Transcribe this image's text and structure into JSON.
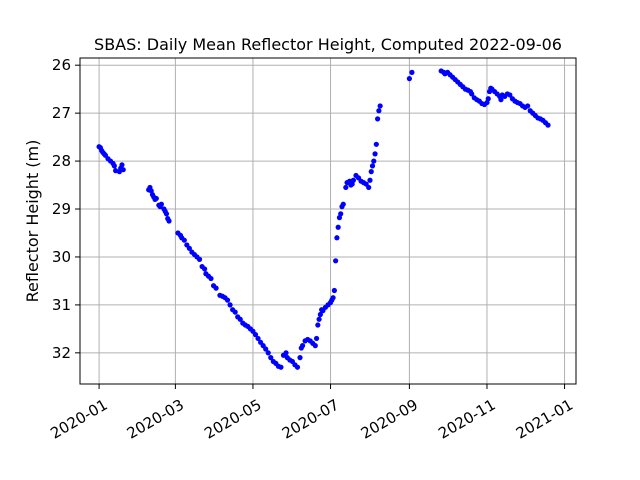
{
  "chart_data": {
    "type": "scatter",
    "title": "SBAS: Daily Mean Reflector Height, Computed 2022-09-06",
    "xlabel": "",
    "ylabel": "Reflector Height (m)",
    "xlim": [
      "2019-12-17",
      "2021-01-10"
    ],
    "ylim": [
      32.65,
      25.85
    ],
    "y_inverted": true,
    "grid": true,
    "marker_color": "#0000ff",
    "x_ticks": [
      "2020-01-01",
      "2020-03-01",
      "2020-05-01",
      "2020-07-01",
      "2020-09-01",
      "2020-11-01",
      "2021-01-01"
    ],
    "x_tick_labels": [
      "2020-01",
      "2020-03",
      "2020-05",
      "2020-07",
      "2020-09",
      "2020-11",
      "2021-01"
    ],
    "y_ticks": [
      26,
      27,
      28,
      29,
      30,
      31,
      32
    ],
    "y_tick_labels": [
      "26",
      "27",
      "28",
      "29",
      "30",
      "31",
      "32"
    ],
    "series": [
      {
        "points": [
          [
            "2020-01-01",
            27.7
          ],
          [
            "2020-01-02",
            27.72
          ],
          [
            "2020-01-03",
            27.78
          ],
          [
            "2020-01-04",
            27.82
          ],
          [
            "2020-01-05",
            27.85
          ],
          [
            "2020-01-06",
            27.88
          ],
          [
            "2020-01-08",
            27.95
          ],
          [
            "2020-01-10",
            28.0
          ],
          [
            "2020-01-12",
            28.05
          ],
          [
            "2020-01-13",
            28.1
          ],
          [
            "2020-01-14",
            28.2
          ],
          [
            "2020-01-17",
            28.22
          ],
          [
            "2020-01-18",
            28.15
          ],
          [
            "2020-01-19",
            28.08
          ],
          [
            "2020-01-20",
            28.18
          ],
          [
            "2020-02-09",
            28.6
          ],
          [
            "2020-02-10",
            28.55
          ],
          [
            "2020-02-11",
            28.62
          ],
          [
            "2020-02-12",
            28.7
          ],
          [
            "2020-02-13",
            28.75
          ],
          [
            "2020-02-14",
            28.8
          ],
          [
            "2020-02-15",
            28.78
          ],
          [
            "2020-02-17",
            28.92
          ],
          [
            "2020-02-18",
            28.95
          ],
          [
            "2020-02-19",
            28.9
          ],
          [
            "2020-02-21",
            29.0
          ],
          [
            "2020-02-22",
            29.05
          ],
          [
            "2020-02-23",
            29.1
          ],
          [
            "2020-02-24",
            29.2
          ],
          [
            "2020-02-25",
            29.25
          ],
          [
            "2020-03-03",
            29.5
          ],
          [
            "2020-03-05",
            29.55
          ],
          [
            "2020-03-06",
            29.6
          ],
          [
            "2020-03-08",
            29.65
          ],
          [
            "2020-03-10",
            29.75
          ],
          [
            "2020-03-12",
            29.82
          ],
          [
            "2020-03-14",
            29.9
          ],
          [
            "2020-03-16",
            29.95
          ],
          [
            "2020-03-18",
            30.0
          ],
          [
            "2020-03-20",
            30.05
          ],
          [
            "2020-03-22",
            30.2
          ],
          [
            "2020-03-24",
            30.25
          ],
          [
            "2020-03-25",
            30.35
          ],
          [
            "2020-03-27",
            30.4
          ],
          [
            "2020-03-29",
            30.45
          ],
          [
            "2020-03-31",
            30.6
          ],
          [
            "2020-04-02",
            30.65
          ],
          [
            "2020-04-05",
            30.8
          ],
          [
            "2020-04-07",
            30.82
          ],
          [
            "2020-04-09",
            30.85
          ],
          [
            "2020-04-11",
            30.9
          ],
          [
            "2020-04-13",
            31.0
          ],
          [
            "2020-04-15",
            31.1
          ],
          [
            "2020-04-17",
            31.15
          ],
          [
            "2020-04-19",
            31.25
          ],
          [
            "2020-04-21",
            31.3
          ],
          [
            "2020-04-23",
            31.38
          ],
          [
            "2020-04-25",
            31.42
          ],
          [
            "2020-04-27",
            31.45
          ],
          [
            "2020-04-29",
            31.5
          ],
          [
            "2020-05-01",
            31.55
          ],
          [
            "2020-05-03",
            31.62
          ],
          [
            "2020-05-05",
            31.7
          ],
          [
            "2020-05-07",
            31.78
          ],
          [
            "2020-05-09",
            31.85
          ],
          [
            "2020-05-11",
            31.92
          ],
          [
            "2020-05-13",
            32.0
          ],
          [
            "2020-05-15",
            32.1
          ],
          [
            "2020-05-17",
            32.18
          ],
          [
            "2020-05-19",
            32.22
          ],
          [
            "2020-05-21",
            32.28
          ],
          [
            "2020-05-23",
            32.3
          ],
          [
            "2020-05-25",
            32.05
          ],
          [
            "2020-05-27",
            32.0
          ],
          [
            "2020-05-28",
            32.1
          ],
          [
            "2020-05-30",
            32.15
          ],
          [
            "2020-06-01",
            32.18
          ],
          [
            "2020-06-03",
            32.25
          ],
          [
            "2020-06-05",
            32.3
          ],
          [
            "2020-06-07",
            32.1
          ],
          [
            "2020-06-08",
            31.9
          ],
          [
            "2020-06-09",
            31.85
          ],
          [
            "2020-06-11",
            31.75
          ],
          [
            "2020-06-13",
            31.72
          ],
          [
            "2020-06-15",
            31.75
          ],
          [
            "2020-06-17",
            31.8
          ],
          [
            "2020-06-19",
            31.85
          ],
          [
            "2020-06-20",
            31.7
          ],
          [
            "2020-06-21",
            31.42
          ],
          [
            "2020-06-22",
            31.3
          ],
          [
            "2020-06-23",
            31.2
          ],
          [
            "2020-06-24",
            31.1
          ],
          [
            "2020-06-25",
            31.12
          ],
          [
            "2020-06-27",
            31.05
          ],
          [
            "2020-06-29",
            31.0
          ],
          [
            "2020-07-01",
            30.95
          ],
          [
            "2020-07-02",
            30.9
          ],
          [
            "2020-07-03",
            30.85
          ],
          [
            "2020-07-04",
            30.7
          ],
          [
            "2020-07-05",
            30.08
          ],
          [
            "2020-07-06",
            29.6
          ],
          [
            "2020-07-07",
            29.38
          ],
          [
            "2020-07-08",
            29.18
          ],
          [
            "2020-07-09",
            29.1
          ],
          [
            "2020-07-10",
            28.95
          ],
          [
            "2020-07-11",
            28.9
          ],
          [
            "2020-07-13",
            28.55
          ],
          [
            "2020-07-14",
            28.45
          ],
          [
            "2020-07-16",
            28.42
          ],
          [
            "2020-07-17",
            28.5
          ],
          [
            "2020-07-18",
            28.48
          ],
          [
            "2020-07-19",
            28.4
          ],
          [
            "2020-07-21",
            28.3
          ],
          [
            "2020-07-23",
            28.35
          ],
          [
            "2020-07-25",
            28.42
          ],
          [
            "2020-07-27",
            28.45
          ],
          [
            "2020-07-29",
            28.48
          ],
          [
            "2020-07-31",
            28.55
          ],
          [
            "2020-08-01",
            28.4
          ],
          [
            "2020-08-02",
            28.22
          ],
          [
            "2020-08-03",
            28.1
          ],
          [
            "2020-08-04",
            28.0
          ],
          [
            "2020-08-05",
            27.85
          ],
          [
            "2020-08-06",
            27.65
          ],
          [
            "2020-08-07",
            27.12
          ],
          [
            "2020-08-08",
            26.95
          ],
          [
            "2020-08-09",
            26.85
          ],
          [
            "2020-09-01",
            26.28
          ],
          [
            "2020-09-03",
            26.15
          ],
          [
            "2020-09-26",
            26.12
          ],
          [
            "2020-09-28",
            26.15
          ],
          [
            "2020-09-29",
            26.18
          ],
          [
            "2020-10-01",
            26.15
          ],
          [
            "2020-10-03",
            26.2
          ],
          [
            "2020-10-05",
            26.25
          ],
          [
            "2020-10-07",
            26.3
          ],
          [
            "2020-10-09",
            26.35
          ],
          [
            "2020-10-11",
            26.4
          ],
          [
            "2020-10-13",
            26.45
          ],
          [
            "2020-10-15",
            26.5
          ],
          [
            "2020-10-17",
            26.52
          ],
          [
            "2020-10-19",
            26.55
          ],
          [
            "2020-10-20",
            26.6
          ],
          [
            "2020-10-22",
            26.68
          ],
          [
            "2020-10-24",
            26.72
          ],
          [
            "2020-10-26",
            26.75
          ],
          [
            "2020-10-28",
            26.8
          ],
          [
            "2020-10-30",
            26.82
          ],
          [
            "2020-11-01",
            26.78
          ],
          [
            "2020-11-02",
            26.7
          ],
          [
            "2020-11-03",
            26.55
          ],
          [
            "2020-11-04",
            26.48
          ],
          [
            "2020-11-05",
            26.5
          ],
          [
            "2020-11-07",
            26.55
          ],
          [
            "2020-11-09",
            26.6
          ],
          [
            "2020-11-11",
            26.65
          ],
          [
            "2020-11-12",
            26.72
          ],
          [
            "2020-11-13",
            26.62
          ],
          [
            "2020-11-15",
            26.65
          ],
          [
            "2020-11-17",
            26.6
          ],
          [
            "2020-11-19",
            26.62
          ],
          [
            "2020-11-21",
            26.7
          ],
          [
            "2020-11-23",
            26.75
          ],
          [
            "2020-11-25",
            26.78
          ],
          [
            "2020-11-27",
            26.8
          ],
          [
            "2020-11-29",
            26.85
          ],
          [
            "2020-12-01",
            26.88
          ],
          [
            "2020-12-03",
            26.85
          ],
          [
            "2020-12-05",
            26.95
          ],
          [
            "2020-12-07",
            27.0
          ],
          [
            "2020-12-09",
            27.05
          ],
          [
            "2020-12-11",
            27.1
          ],
          [
            "2020-12-13",
            27.12
          ],
          [
            "2020-12-15",
            27.15
          ],
          [
            "2020-12-17",
            27.2
          ],
          [
            "2020-12-19",
            27.25
          ]
        ]
      }
    ]
  }
}
